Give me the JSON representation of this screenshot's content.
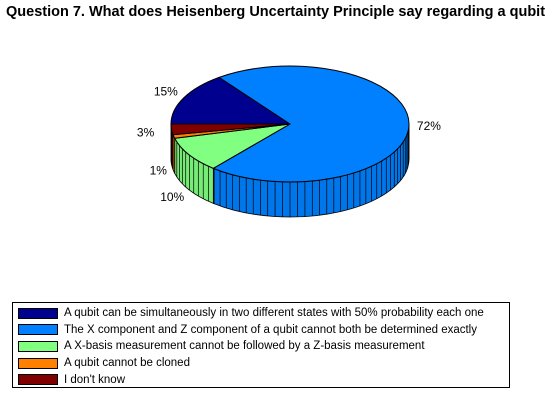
{
  "chart_data": {
    "type": "pie",
    "title": "Question 7. What does Heisenberg Uncertainty Principle say regarding a qubit",
    "slices": [
      {
        "label": "A qubit can be simultaneously in two different states with 50% probability each one",
        "value": 15,
        "display": "15%",
        "color": "#00008F"
      },
      {
        "label": "The X component and Z component of a qubit cannot both be determined exactly",
        "value": 72,
        "display": "72%",
        "color": "#0080FF"
      },
      {
        "label": "A X-basis measurement cannot be followed by a Z-basis measurement",
        "value": 10,
        "display": "10%",
        "color": "#80FF80"
      },
      {
        "label": "A qubit cannot be cloned",
        "value": 1,
        "display": "1%",
        "color": "#FF8000"
      },
      {
        "label": "I don't know",
        "value": 3,
        "display": "3%",
        "color": "#800000"
      }
    ],
    "style": "3d",
    "legend_position": "bottom"
  }
}
